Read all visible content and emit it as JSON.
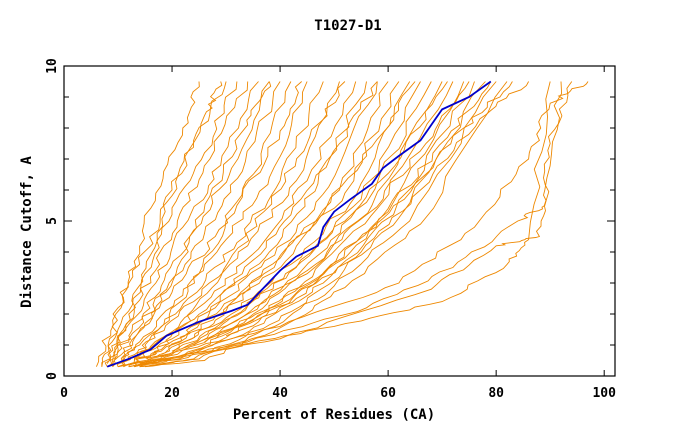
{
  "chart_data": {
    "type": "line",
    "title": "T1027-D1",
    "xlabel": "Percent of Residues (CA)",
    "ylabel": "Distance Cutoff, A",
    "xlim": [
      0,
      102
    ],
    "ylim": [
      0,
      10
    ],
    "xticks": [
      0,
      20,
      40,
      60,
      80,
      100
    ],
    "yticks": [
      0,
      5,
      10
    ],
    "grid": false,
    "legend": "none",
    "colors": {
      "highlight": "#0000cc",
      "background_series": "#ee8800",
      "axes": "#000000"
    },
    "highlight_series": {
      "points": [
        [
          8,
          0.3
        ],
        [
          12,
          0.55
        ],
        [
          16,
          0.85
        ],
        [
          19,
          1.3
        ],
        [
          25,
          1.75
        ],
        [
          31,
          2.1
        ],
        [
          34,
          2.3
        ],
        [
          37,
          2.85
        ],
        [
          40,
          3.4
        ],
        [
          43,
          3.85
        ],
        [
          47,
          4.2
        ],
        [
          48,
          4.8
        ],
        [
          50,
          5.3
        ],
        [
          53,
          5.7
        ],
        [
          57,
          6.2
        ],
        [
          59,
          6.7
        ],
        [
          62,
          7.1
        ],
        [
          66,
          7.6
        ],
        [
          68,
          8.1
        ],
        [
          70,
          8.6
        ],
        [
          75,
          9.0
        ],
        [
          79,
          9.5
        ]
      ]
    },
    "background_series": [
      {
        "points": [
          [
            6,
            0.3
          ],
          [
            9,
            1.8
          ],
          [
            14,
            3.6
          ],
          [
            19,
            5.6
          ],
          [
            24,
            7.6
          ],
          [
            30,
            9.5
          ]
        ]
      },
      {
        "points": [
          [
            7,
            0.3
          ],
          [
            10,
            1.5
          ],
          [
            15,
            3.3
          ],
          [
            20,
            5.2
          ],
          [
            26,
            7.2
          ],
          [
            32,
            9.5
          ]
        ]
      },
      {
        "points": [
          [
            7,
            0.3
          ],
          [
            11,
            1.5
          ],
          [
            16,
            3.2
          ],
          [
            21,
            5.0
          ],
          [
            27,
            7.0
          ],
          [
            34,
            9.5
          ]
        ]
      },
      {
        "points": [
          [
            8,
            0.3
          ],
          [
            11,
            1.4
          ],
          [
            17,
            3.0
          ],
          [
            22,
            4.8
          ],
          [
            29,
            6.8
          ],
          [
            36,
            9.5
          ]
        ]
      },
      {
        "points": [
          [
            8,
            0.3
          ],
          [
            12,
            1.3
          ],
          [
            18,
            2.9
          ],
          [
            24,
            4.7
          ],
          [
            31,
            6.7
          ],
          [
            38,
            9.5
          ]
        ]
      },
      {
        "points": [
          [
            8,
            0.3
          ],
          [
            12,
            1.2
          ],
          [
            19,
            2.8
          ],
          [
            26,
            4.6
          ],
          [
            33,
            6.6
          ],
          [
            40,
            9.5
          ]
        ]
      },
      {
        "points": [
          [
            9,
            0.3
          ],
          [
            13,
            1.2
          ],
          [
            20,
            2.7
          ],
          [
            28,
            4.5
          ],
          [
            35,
            6.5
          ],
          [
            42,
            9.5
          ]
        ]
      },
      {
        "points": [
          [
            9,
            0.3
          ],
          [
            14,
            1.1
          ],
          [
            22,
            2.6
          ],
          [
            30,
            4.4
          ],
          [
            38,
            6.4
          ],
          [
            45,
            9.5
          ]
        ]
      },
      {
        "points": [
          [
            9,
            0.3
          ],
          [
            14,
            1.0
          ],
          [
            23,
            2.5
          ],
          [
            32,
            4.3
          ],
          [
            40,
            6.3
          ],
          [
            48,
            9.5
          ]
        ]
      },
      {
        "points": [
          [
            10,
            0.3
          ],
          [
            15,
            1.0
          ],
          [
            24,
            2.4
          ],
          [
            34,
            4.2
          ],
          [
            43,
            6.3
          ],
          [
            51,
            9.5
          ]
        ]
      },
      {
        "points": [
          [
            10,
            0.3
          ],
          [
            16,
            0.95
          ],
          [
            26,
            2.35
          ],
          [
            36,
            4.1
          ],
          [
            45,
            6.3
          ],
          [
            54,
            9.5
          ]
        ]
      },
      {
        "points": [
          [
            10,
            0.3
          ],
          [
            16,
            0.9
          ],
          [
            27,
            2.3
          ],
          [
            38,
            4.0
          ],
          [
            47,
            6.2
          ],
          [
            56,
            9.5
          ]
        ]
      },
      {
        "points": [
          [
            11,
            0.3
          ],
          [
            17,
            0.9
          ],
          [
            28,
            2.2
          ],
          [
            39,
            3.9
          ],
          [
            49,
            6.1
          ],
          [
            58,
            9.5
          ]
        ]
      },
      {
        "points": [
          [
            11,
            0.3
          ],
          [
            18,
            0.85
          ],
          [
            29,
            2.15
          ],
          [
            40,
            3.8
          ],
          [
            51,
            6.0
          ],
          [
            60,
            9.5
          ]
        ]
      },
      {
        "points": [
          [
            11,
            0.3
          ],
          [
            18,
            0.8
          ],
          [
            30,
            2.1
          ],
          [
            41,
            3.7
          ],
          [
            52,
            5.9
          ],
          [
            62,
            9.5
          ]
        ]
      },
      {
        "points": [
          [
            12,
            0.3
          ],
          [
            19,
            0.8
          ],
          [
            31,
            2.0
          ],
          [
            42,
            3.6
          ],
          [
            54,
            5.8
          ],
          [
            64,
            9.5
          ]
        ]
      },
      {
        "points": [
          [
            12,
            0.3
          ],
          [
            20,
            0.75
          ],
          [
            32,
            1.95
          ],
          [
            43,
            3.5
          ],
          [
            55,
            5.7
          ],
          [
            66,
            9.5
          ]
        ]
      },
      {
        "points": [
          [
            12,
            0.3
          ],
          [
            20,
            0.7
          ],
          [
            33,
            1.9
          ],
          [
            44,
            3.4
          ],
          [
            56,
            5.6
          ],
          [
            68,
            9.5
          ]
        ]
      },
      {
        "points": [
          [
            13,
            0.3
          ],
          [
            21,
            0.7
          ],
          [
            34,
            1.85
          ],
          [
            45,
            3.3
          ],
          [
            57,
            5.5
          ],
          [
            70,
            9.5
          ]
        ]
      },
      {
        "points": [
          [
            13,
            0.3
          ],
          [
            22,
            0.65
          ],
          [
            35,
            1.8
          ],
          [
            46,
            3.2
          ],
          [
            58,
            5.4
          ],
          [
            72,
            9.5
          ]
        ]
      },
      {
        "points": [
          [
            13,
            0.3
          ],
          [
            22,
            0.6
          ],
          [
            36,
            1.75
          ],
          [
            47,
            3.1
          ],
          [
            60,
            5.3
          ],
          [
            74,
            9.5
          ]
        ]
      },
      {
        "points": [
          [
            14,
            0.3
          ],
          [
            23,
            0.6
          ],
          [
            37,
            1.7
          ],
          [
            48,
            3.0
          ],
          [
            61,
            5.2
          ],
          [
            76,
            9.5
          ]
        ]
      },
      {
        "points": [
          [
            14,
            0.3
          ],
          [
            24,
            0.55
          ],
          [
            38,
            1.65
          ],
          [
            49,
            2.95
          ],
          [
            62,
            5.1
          ],
          [
            78,
            9.5
          ]
        ]
      },
      {
        "points": [
          [
            14,
            0.3
          ],
          [
            25,
            0.55
          ],
          [
            39,
            1.6
          ],
          [
            50,
            2.9
          ],
          [
            64,
            5.0
          ],
          [
            80,
            9.5
          ]
        ]
      },
      {
        "points": [
          [
            15,
            0.3
          ],
          [
            26,
            0.5
          ],
          [
            40,
            1.55
          ],
          [
            52,
            2.85
          ],
          [
            66,
            4.9
          ],
          [
            82,
            9.5
          ]
        ]
      },
      {
        "points": [
          [
            10,
            0.3
          ],
          [
            30,
            0.9
          ],
          [
            50,
            1.6
          ],
          [
            70,
            2.4
          ],
          [
            82,
            3.6
          ],
          [
            86,
            4.4
          ],
          [
            90,
            9.5
          ]
        ]
      },
      {
        "points": [
          [
            12,
            0.3
          ],
          [
            40,
            1.2
          ],
          [
            68,
            2.8
          ],
          [
            80,
            4.2
          ],
          [
            88,
            4.5
          ],
          [
            89,
            6.0
          ],
          [
            92,
            9.5
          ]
        ]
      },
      {
        "points": [
          [
            14,
            0.4
          ],
          [
            34,
            1.1
          ],
          [
            56,
            2.2
          ],
          [
            72,
            3.5
          ],
          [
            84,
            5.0
          ],
          [
            89,
            5.5
          ],
          [
            90,
            7.5
          ],
          [
            94,
            9.5
          ]
        ]
      },
      {
        "points": [
          [
            16,
            0.6
          ],
          [
            40,
            1.6
          ],
          [
            62,
            3.0
          ],
          [
            76,
            4.8
          ],
          [
            86,
            7.0
          ],
          [
            90,
            8.8
          ],
          [
            97,
            9.5
          ]
        ]
      },
      {
        "points": [
          [
            8,
            0.4
          ],
          [
            10,
            2.2
          ],
          [
            13,
            3.7
          ],
          [
            17,
            5.9
          ],
          [
            22,
            8.0
          ],
          [
            25,
            9.5
          ]
        ]
      },
      {
        "points": [
          [
            9,
            0.4
          ],
          [
            12,
            2.0
          ],
          [
            16,
            3.9
          ],
          [
            20,
            6.0
          ],
          [
            26,
            8.4
          ],
          [
            29,
            9.5
          ]
        ]
      },
      {
        "points": [
          [
            11,
            0.5
          ],
          [
            15,
            1.7
          ],
          [
            21,
            3.5
          ],
          [
            27,
            5.8
          ],
          [
            34,
            8.1
          ],
          [
            38,
            9.5
          ]
        ]
      },
      {
        "points": [
          [
            13,
            0.5
          ],
          [
            18,
            1.6
          ],
          [
            25,
            3.3
          ],
          [
            32,
            5.5
          ],
          [
            40,
            7.9
          ],
          [
            44,
            9.5
          ]
        ]
      },
      {
        "points": [
          [
            16,
            0.6
          ],
          [
            22,
            1.6
          ],
          [
            29,
            3.2
          ],
          [
            37,
            5.3
          ],
          [
            45,
            7.5
          ],
          [
            52,
            9.5
          ]
        ]
      },
      {
        "points": [
          [
            18,
            0.7
          ],
          [
            25,
            1.7
          ],
          [
            33,
            3.3
          ],
          [
            42,
            5.2
          ],
          [
            51,
            7.5
          ],
          [
            58,
            9.5
          ]
        ]
      },
      {
        "points": [
          [
            20,
            0.8
          ],
          [
            28,
            1.8
          ],
          [
            37,
            3.3
          ],
          [
            47,
            5.1
          ],
          [
            57,
            7.4
          ],
          [
            65,
            9.5
          ]
        ]
      },
      {
        "points": [
          [
            22,
            0.9
          ],
          [
            31,
            1.9
          ],
          [
            41,
            3.3
          ],
          [
            52,
            5.0
          ],
          [
            63,
            7.3
          ],
          [
            71,
            9.5
          ]
        ]
      },
      {
        "points": [
          [
            24,
            1.0
          ],
          [
            34,
            2.0
          ],
          [
            45,
            3.4
          ],
          [
            56,
            5.2
          ],
          [
            67,
            7.5
          ],
          [
            75,
            9.5
          ]
        ]
      },
      {
        "points": [
          [
            26,
            1.1
          ],
          [
            37,
            2.1
          ],
          [
            49,
            3.5
          ],
          [
            60,
            5.4
          ],
          [
            71,
            7.7
          ],
          [
            79,
            9.5
          ]
        ]
      },
      {
        "points": [
          [
            28,
            1.2
          ],
          [
            40,
            2.3
          ],
          [
            52,
            3.8
          ],
          [
            63,
            5.7
          ],
          [
            74,
            8.0
          ],
          [
            83,
            9.5
          ]
        ]
      },
      {
        "points": [
          [
            30,
            1.3
          ],
          [
            43,
            2.5
          ],
          [
            55,
            4.0
          ],
          [
            66,
            6.0
          ],
          [
            77,
            8.3
          ],
          [
            86,
            9.5
          ]
        ]
      }
    ]
  }
}
